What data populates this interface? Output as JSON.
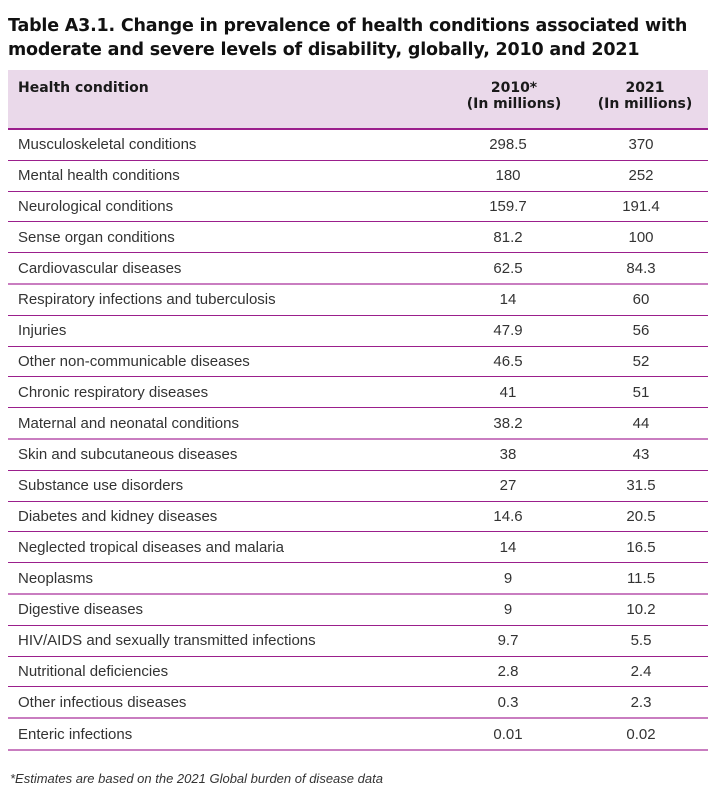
{
  "title": "Table A3.1. Change in prevalence of health conditions associated with\nmoderate and severe levels of disability, globally, 2010 and 2021",
  "table": {
    "headers": {
      "condition": "Health condition",
      "col2010_year": "2010*",
      "col2010_unit": "(In millions)",
      "col2021_year": "2021",
      "col2021_unit": "(In millions)"
    },
    "rows": [
      {
        "condition": "Musculoskeletal conditions",
        "v2010": "298.5",
        "v2021": "370"
      },
      {
        "condition": "Mental health conditions",
        "v2010": "180",
        "v2021": "252"
      },
      {
        "condition": "Neurological conditions",
        "v2010": "159.7",
        "v2021": "191.4"
      },
      {
        "condition": "Sense organ conditions",
        "v2010": "81.2",
        "v2021": "100"
      },
      {
        "condition": "Cardiovascular diseases",
        "v2010": "62.5",
        "v2021": "84.3"
      },
      {
        "condition": "Respiratory infections and tuberculosis",
        "v2010": "14",
        "v2021": "60"
      },
      {
        "condition": "Injuries",
        "v2010": "47.9",
        "v2021": "56"
      },
      {
        "condition": "Other non-communicable diseases",
        "v2010": "46.5",
        "v2021": "52"
      },
      {
        "condition": "Chronic respiratory diseases",
        "v2010": "41",
        "v2021": "51"
      },
      {
        "condition": "Maternal and neonatal conditions",
        "v2010": "38.2",
        "v2021": "44"
      },
      {
        "condition": "Skin and subcutaneous diseases",
        "v2010": "38",
        "v2021": "43"
      },
      {
        "condition": "Substance use disorders",
        "v2010": "27",
        "v2021": "31.5"
      },
      {
        "condition": "Diabetes and kidney diseases",
        "v2010": "14.6",
        "v2021": "20.5"
      },
      {
        "condition": "Neglected tropical diseases and malaria",
        "v2010": "14",
        "v2021": "16.5"
      },
      {
        "condition": "Neoplasms",
        "v2010": "9",
        "v2021": "11.5"
      },
      {
        "condition": "Digestive diseases",
        "v2010": "9",
        "v2021": "10.2"
      },
      {
        "condition": "HIV/AIDS and sexually transmitted infections",
        "v2010": "9.7",
        "v2021": "5.5"
      },
      {
        "condition": "Nutritional deficiencies",
        "v2010": "2.8",
        "v2021": "2.4"
      },
      {
        "condition": "Other infectious diseases",
        "v2010": "0.3",
        "v2021": "2.3"
      },
      {
        "condition": "Enteric infections",
        "v2010": "0.01",
        "v2021": "0.02"
      }
    ]
  },
  "footnote": "*Estimates are based on the 2021 Global burden of disease data",
  "colors": {
    "header_bg": "#ead9ea",
    "rule": "#9b1f8c",
    "rule_light": "#c97dc0"
  }
}
